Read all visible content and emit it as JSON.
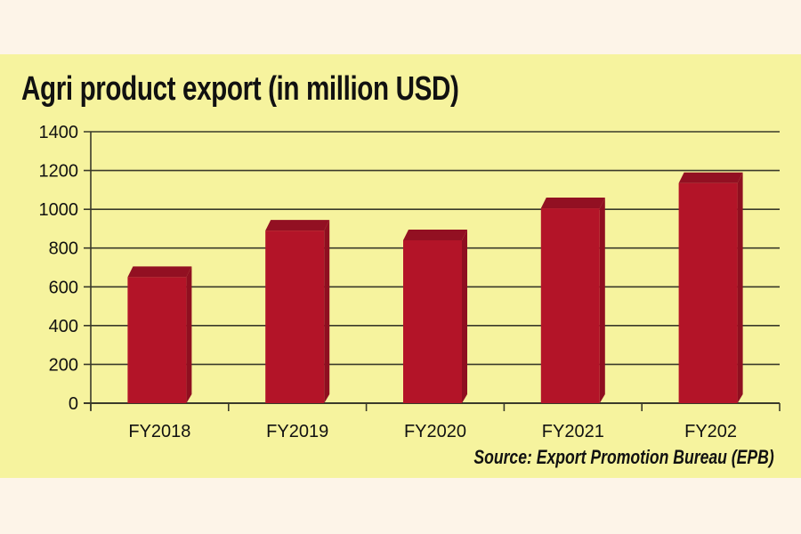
{
  "chart_data": {
    "type": "bar",
    "title": "Agri product export (in million USD)",
    "source": "Source: Export Promotion Bureau (EPB)",
    "categories": [
      "FY2018",
      "FY2019",
      "FY2020",
      "FY2021",
      "FY202"
    ],
    "values": [
      650,
      890,
      840,
      1005,
      1135
    ],
    "xlabel": "",
    "ylabel": "",
    "ylim": [
      0,
      1400
    ],
    "yticks": [
      "0",
      "200",
      "400",
      "600",
      "800",
      "1000",
      "1200",
      "1400"
    ],
    "grid": true,
    "colors": {
      "bar": "#b31428",
      "bar_top": "#921022",
      "background": "#f6f39e"
    }
  }
}
